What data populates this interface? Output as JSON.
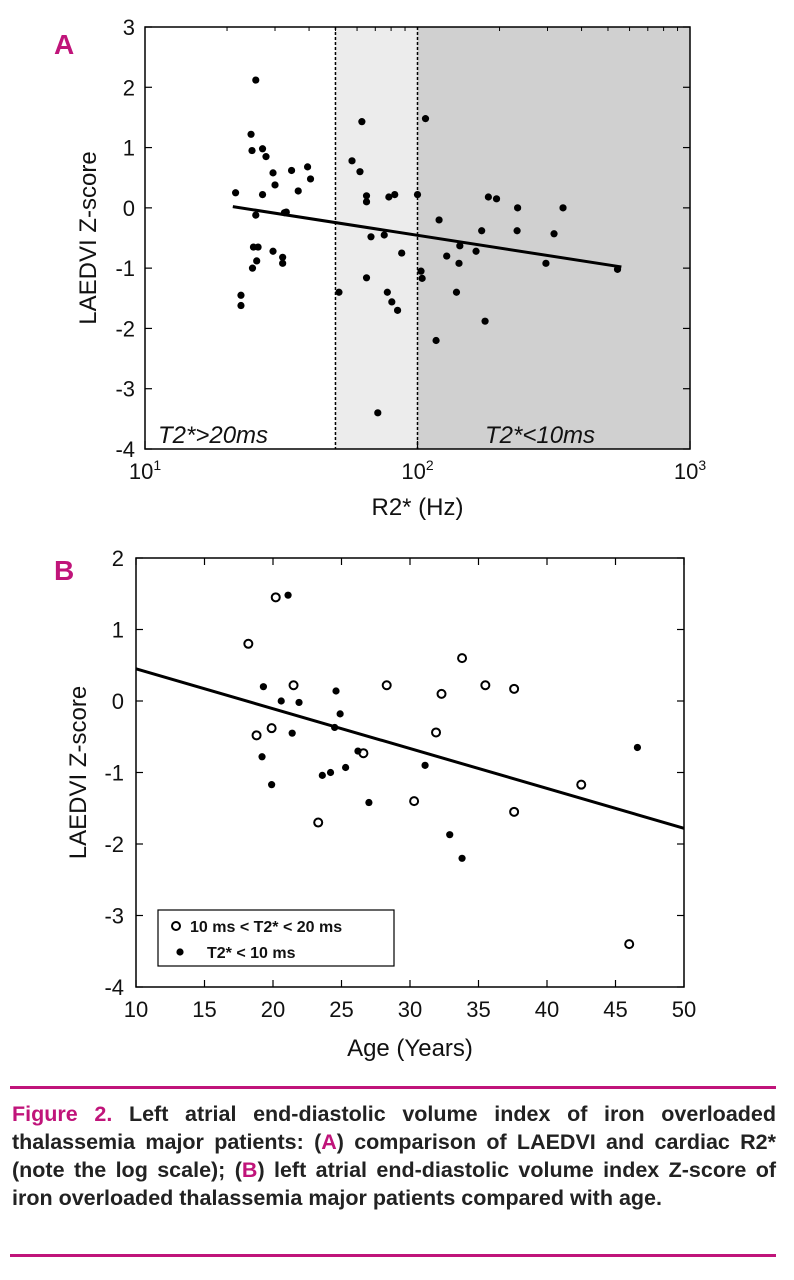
{
  "colors": {
    "accent": "#c0147a",
    "shade_light": "#ececec",
    "shade_dark": "#d0d0d0"
  },
  "chart_data": [
    {
      "type": "scatter",
      "panel": "A",
      "xscale": "log",
      "xlabel": "R2* (Hz)",
      "ylabel": "LAEDVI Z-score",
      "xlim": [
        10,
        1000
      ],
      "ylim": [
        -4,
        3
      ],
      "xticks": [
        {
          "value": 10,
          "base": "10",
          "exp": "1"
        },
        {
          "value": 100,
          "base": "10",
          "exp": "2"
        },
        {
          "value": 1000,
          "base": "10",
          "exp": "3"
        }
      ],
      "yticks": [
        3,
        2,
        1,
        0,
        -1,
        -2,
        -3,
        -4
      ],
      "regions": [
        {
          "label": "T2*>20ms",
          "from": 10,
          "to": 50,
          "shade": "none"
        },
        {
          "label": "",
          "from": 50,
          "to": 100,
          "shade": "light"
        },
        {
          "label": "T2*<10ms",
          "from": 100,
          "to": 1000,
          "shade": "dark"
        }
      ],
      "fit_line": {
        "x": [
          21,
          560
        ],
        "y": [
          0.02,
          -0.98
        ]
      },
      "points": [
        [
          21.5,
          0.25
        ],
        [
          22.5,
          -1.45
        ],
        [
          22.5,
          -1.62
        ],
        [
          24.5,
          1.22
        ],
        [
          24.7,
          0.95
        ],
        [
          25.0,
          -0.65
        ],
        [
          24.8,
          -1.0
        ],
        [
          25.5,
          2.12
        ],
        [
          25.5,
          -0.12
        ],
        [
          26.0,
          -0.65
        ],
        [
          25.7,
          -0.88
        ],
        [
          27.0,
          0.98
        ],
        [
          27.0,
          0.22
        ],
        [
          27.8,
          0.85
        ],
        [
          29.5,
          0.58
        ],
        [
          29.5,
          -0.72
        ],
        [
          30.0,
          0.38
        ],
        [
          32.0,
          -0.82
        ],
        [
          32.0,
          -0.92
        ],
        [
          32.5,
          -0.08
        ],
        [
          33.0,
          -0.07
        ],
        [
          34.5,
          0.62
        ],
        [
          36.5,
          0.28
        ],
        [
          39.5,
          0.68
        ],
        [
          40.5,
          0.48
        ],
        [
          51.5,
          -1.4
        ],
        [
          57.5,
          0.78
        ],
        [
          61.5,
          0.6
        ],
        [
          62.5,
          1.43
        ],
        [
          65.0,
          0.2
        ],
        [
          65.0,
          0.1
        ],
        [
          65.0,
          -1.16
        ],
        [
          67.5,
          -0.48
        ],
        [
          71.5,
          -3.4
        ],
        [
          75.5,
          -0.45
        ],
        [
          77.5,
          -1.4
        ],
        [
          78.5,
          0.18
        ],
        [
          80.5,
          -1.56
        ],
        [
          82.5,
          0.22
        ],
        [
          84.5,
          -1.7
        ],
        [
          87.5,
          -0.75
        ],
        [
          100.0,
          0.22
        ],
        [
          103.0,
          -1.05
        ],
        [
          104.0,
          -1.17
        ],
        [
          107.0,
          1.48
        ],
        [
          117.0,
          -2.2
        ],
        [
          120.0,
          -0.2
        ],
        [
          128.0,
          -0.8
        ],
        [
          139.0,
          -1.4
        ],
        [
          142.0,
          -0.92
        ],
        [
          143.0,
          -0.63
        ],
        [
          164.0,
          -0.72
        ],
        [
          172.0,
          -0.38
        ],
        [
          177.0,
          -1.88
        ],
        [
          182.0,
          0.18
        ],
        [
          195.0,
          0.15
        ],
        [
          232.0,
          -0.38
        ],
        [
          233.0,
          0.0
        ],
        [
          296.0,
          -0.92
        ],
        [
          317.0,
          -0.43
        ],
        [
          342.0,
          0.0
        ],
        [
          542.0,
          -1.02
        ]
      ]
    },
    {
      "type": "scatter",
      "panel": "B",
      "xlabel": "Age (Years)",
      "ylabel": "LAEDVI Z-score",
      "xlim": [
        10,
        50
      ],
      "ylim": [
        -4,
        2
      ],
      "xticks": [
        10,
        15,
        20,
        25,
        30,
        35,
        40,
        45,
        50
      ],
      "yticks": [
        2,
        1,
        0,
        -1,
        -2,
        -3,
        -4
      ],
      "legend_position": "bottom-left",
      "fit_line": {
        "x": [
          10,
          50
        ],
        "y": [
          0.45,
          -1.78
        ]
      },
      "series": [
        {
          "name": "10 ms < T2* < 20 ms",
          "marker": "open-circle",
          "points": [
            [
              18.2,
              0.8
            ],
            [
              18.8,
              -0.48
            ],
            [
              19.9,
              -0.38
            ],
            [
              20.2,
              1.45
            ],
            [
              21.5,
              0.22
            ],
            [
              23.3,
              -1.7
            ],
            [
              26.6,
              -0.73
            ],
            [
              28.3,
              0.22
            ],
            [
              30.3,
              -1.4
            ],
            [
              31.9,
              -0.44
            ],
            [
              32.3,
              0.1
            ],
            [
              33.8,
              0.6
            ],
            [
              35.5,
              0.22
            ],
            [
              37.6,
              0.17
            ],
            [
              37.6,
              -1.55
            ],
            [
              42.5,
              -1.17
            ],
            [
              46.0,
              -3.4
            ]
          ]
        },
        {
          "name": "T2* < 10 ms",
          "marker": "filled-circle",
          "points": [
            [
              19.2,
              -0.78
            ],
            [
              19.3,
              0.2
            ],
            [
              19.9,
              -1.17
            ],
            [
              20.6,
              0.0
            ],
            [
              21.1,
              1.48
            ],
            [
              21.4,
              -0.45
            ],
            [
              21.9,
              -0.02
            ],
            [
              23.6,
              -1.04
            ],
            [
              24.2,
              -1.0
            ],
            [
              24.5,
              -0.37
            ],
            [
              24.6,
              0.14
            ],
            [
              24.9,
              -0.18
            ],
            [
              25.3,
              -0.93
            ],
            [
              26.2,
              -0.7
            ],
            [
              27.0,
              -1.42
            ],
            [
              31.1,
              -0.9
            ],
            [
              32.9,
              -1.87
            ],
            [
              33.8,
              -2.2
            ],
            [
              46.6,
              -0.65
            ]
          ]
        }
      ]
    }
  ],
  "caption": {
    "figure_label": "Figure 2.",
    "text_1": " Left atrial end-diastolic volume index of iron overloaded thalassemia major patients: (",
    "ref_a": "A",
    "text_2": ") comparison of LAEDVI and cardiac R2* (note the log scale); (",
    "ref_b": "B",
    "text_3": ") left atrial end-diastolic volume index Z-score of iron overloaded thalassemia major patients compared with age."
  }
}
